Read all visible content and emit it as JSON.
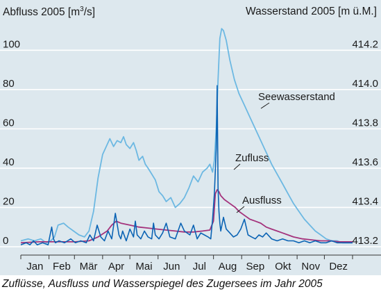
{
  "caption": "Zuflüsse, Ausfluss und Wasserspiegel des Zugersees im Jahr 2005",
  "chart_data": {
    "type": "line",
    "left_axis": {
      "label_prefix": "Abfluss 2005 [m",
      "label_superscript": "3",
      "label_suffix": "/s]",
      "range": [
        0,
        110
      ],
      "ticks": [
        0,
        20,
        40,
        60,
        80,
        100
      ],
      "tick_labels": [
        "0",
        "20",
        "40",
        "60",
        "80",
        "100"
      ]
    },
    "right_axis": {
      "label": "Wasserstand 2005 [m ü.M.]",
      "range": [
        413.2,
        414.3
      ],
      "ticks": [
        413.2,
        413.4,
        413.6,
        413.8,
        414.0,
        414.2
      ],
      "tick_labels": [
        "413.2",
        "413.4",
        "413.6",
        "413.8",
        "414.0",
        "414.2"
      ]
    },
    "x_axis": {
      "range": [
        0,
        365
      ],
      "month_labels": [
        "Jan",
        "Feb",
        "Mär",
        "Apr",
        "Mai",
        "Jun",
        "Jul",
        "Aug",
        "Sep",
        "Okt",
        "Nov",
        "Dez"
      ],
      "month_starts": [
        0,
        31,
        59,
        90,
        120,
        151,
        181,
        212,
        243,
        273,
        304,
        334,
        365
      ]
    },
    "grid": "horizontal",
    "colors": {
      "panel_background": "#dde8ee",
      "seewasserstand": "#6cb8e2",
      "zufluss": "#0a63b4",
      "ausfluss": "#a4327c",
      "grid": "#ffffff"
    },
    "series": [
      {
        "name": "Seewasserstand",
        "axis": "right",
        "x": [
          0,
          8,
          15,
          22,
          28,
          33,
          37,
          41,
          47,
          52,
          58,
          64,
          70,
          75,
          80,
          85,
          90,
          95,
          98,
          102,
          106,
          110,
          113,
          116,
          120,
          124,
          127,
          130,
          134,
          137,
          140,
          144,
          148,
          152,
          156,
          160,
          165,
          170,
          175,
          180,
          185,
          190,
          195,
          200,
          205,
          208,
          211,
          213,
          215,
          217,
          219,
          221,
          223,
          226,
          230,
          235,
          240,
          246,
          252,
          258,
          264,
          270,
          276,
          282,
          288,
          294,
          300,
          306,
          312,
          318,
          324,
          330,
          336,
          342,
          348,
          354,
          360,
          365
        ],
        "values": [
          413.23,
          413.24,
          413.23,
          413.24,
          413.22,
          413.23,
          413.25,
          413.31,
          413.32,
          413.3,
          413.28,
          413.26,
          413.25,
          413.28,
          413.38,
          413.55,
          413.67,
          413.72,
          413.75,
          413.71,
          413.74,
          413.73,
          413.76,
          413.72,
          413.7,
          413.73,
          413.69,
          413.64,
          413.66,
          413.62,
          413.6,
          413.57,
          413.54,
          413.48,
          413.46,
          413.43,
          413.45,
          413.4,
          413.42,
          413.45,
          413.5,
          413.56,
          413.53,
          413.58,
          413.6,
          413.62,
          413.58,
          413.64,
          413.8,
          414.05,
          414.26,
          414.31,
          414.3,
          414.25,
          414.15,
          414.05,
          413.98,
          413.92,
          413.86,
          413.8,
          413.74,
          413.68,
          413.62,
          413.57,
          413.52,
          413.47,
          413.42,
          413.38,
          413.34,
          413.31,
          413.28,
          413.26,
          413.24,
          413.23,
          413.23,
          413.22,
          413.22,
          413.22
        ]
      },
      {
        "name": "Zufluss",
        "axis": "left",
        "x": [
          0,
          6,
          10,
          14,
          18,
          24,
          30,
          34,
          36,
          38,
          42,
          48,
          55,
          60,
          66,
          72,
          76,
          80,
          84,
          88,
          92,
          96,
          100,
          104,
          108,
          110,
          112,
          116,
          120,
          124,
          126,
          128,
          132,
          136,
          140,
          144,
          146,
          148,
          152,
          156,
          160,
          164,
          170,
          176,
          180,
          186,
          190,
          194,
          198,
          202,
          206,
          209,
          211,
          213,
          215,
          216,
          217,
          218,
          219,
          220,
          223,
          226,
          230,
          234,
          238,
          242,
          246,
          250,
          254,
          258,
          262,
          266,
          270,
          276,
          282,
          288,
          294,
          300,
          306,
          312,
          318,
          324,
          330,
          336,
          342,
          348,
          354,
          360,
          365
        ],
        "values": [
          1,
          2,
          1,
          3,
          1,
          2,
          1,
          10,
          4,
          2,
          3,
          2,
          4,
          2,
          3,
          2,
          6,
          3,
          11,
          5,
          3,
          8,
          4,
          17,
          6,
          4,
          8,
          3,
          9,
          5,
          13,
          6,
          4,
          8,
          5,
          4,
          12,
          6,
          4,
          7,
          12,
          5,
          4,
          12,
          8,
          6,
          11,
          4,
          7,
          6,
          5,
          4,
          14,
          27,
          50,
          82,
          30,
          18,
          12,
          8,
          15,
          9,
          7,
          5,
          6,
          9,
          14,
          6,
          5,
          4,
          6,
          5,
          7,
          4,
          3,
          4,
          3,
          3,
          2,
          3,
          2,
          3,
          2,
          2,
          3,
          2,
          2,
          2,
          2
        ]
      },
      {
        "name": "Ausfluss",
        "axis": "left",
        "x": [
          0,
          20,
          40,
          60,
          75,
          85,
          95,
          100,
          105,
          110,
          120,
          130,
          140,
          150,
          160,
          170,
          180,
          190,
          200,
          208,
          212,
          214,
          216,
          218,
          220,
          224,
          230,
          236,
          240,
          246,
          252,
          258,
          264,
          270,
          276,
          282,
          288,
          294,
          300,
          310,
          320,
          330,
          340,
          350,
          360,
          365
        ],
        "values": [
          2,
          2.5,
          2.5,
          2.5,
          3,
          5,
          8,
          11,
          13,
          12,
          11,
          10,
          9.5,
          9,
          8.5,
          8,
          7.5,
          7.5,
          8,
          8.5,
          13,
          27,
          29,
          28,
          26,
          24,
          22,
          20,
          18,
          16,
          14,
          13,
          12,
          10,
          9,
          8,
          7,
          6,
          5,
          4,
          3.5,
          3,
          3,
          2.5,
          2.5,
          2.5
        ]
      }
    ],
    "annotations": [
      {
        "text": "Seewasserstand",
        "series": "Seewasserstand"
      },
      {
        "text": "Zufluss",
        "series": "Zufluss"
      },
      {
        "text": "Ausfluss",
        "series": "Ausfluss"
      }
    ]
  }
}
